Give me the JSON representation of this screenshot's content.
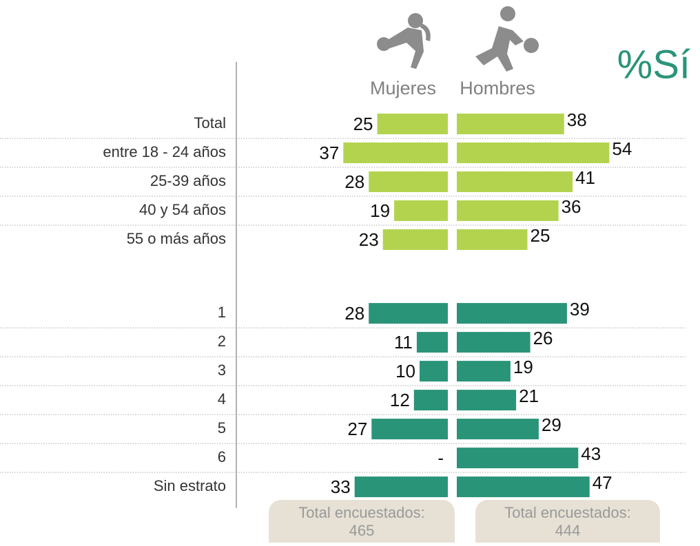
{
  "chart_data": {
    "type": "bar",
    "title": "%Sí",
    "categories": [
      "Total",
      "entre 18 - 24 años",
      "25-39 años",
      "40 y 54 años",
      "55 o más años",
      "1",
      "2",
      "3",
      "4",
      "5",
      "6",
      "Sin estrato"
    ],
    "colors": [
      "#b3d34f",
      "#b3d34f",
      "#b3d34f",
      "#b3d34f",
      "#b3d34f",
      "#2a9478",
      "#2a9478",
      "#2a9478",
      "#2a9478",
      "#2a9478",
      "#2a9478",
      "#2a9478"
    ],
    "series": [
      {
        "name": "Mujeres",
        "values": [
          25,
          37,
          28,
          19,
          23,
          28,
          11,
          10,
          12,
          27,
          null,
          33
        ],
        "value_labels": [
          "25",
          "37",
          "28",
          "19",
          "23",
          "28",
          "11",
          "10",
          "12",
          "27",
          "-",
          "33"
        ],
        "note": "Total encuestados:",
        "total": 465
      },
      {
        "name": "Hombres",
        "values": [
          38,
          54,
          41,
          36,
          25,
          39,
          26,
          19,
          21,
          29,
          43,
          47
        ],
        "note": "Total encuestados:",
        "total": 444
      }
    ]
  }
}
